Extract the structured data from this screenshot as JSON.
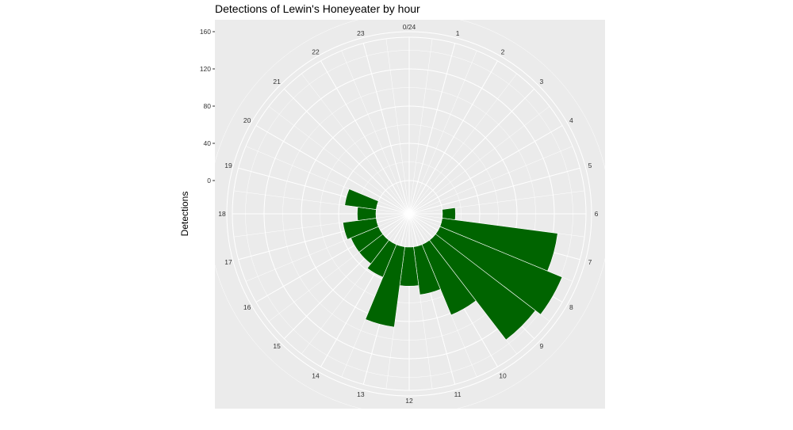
{
  "chart_data": {
    "type": "bar",
    "coordinate_system": "polar",
    "title": "Detections of Lewin's Honeyeater by hour",
    "xlabel": "",
    "ylabel": "Detections",
    "categories": [
      "0/24",
      "1",
      "2",
      "3",
      "4",
      "5",
      "6",
      "7",
      "8",
      "9",
      "10",
      "11",
      "12",
      "13",
      "14",
      "15",
      "16",
      "17",
      "18",
      "19",
      "20",
      "21",
      "22",
      "23"
    ],
    "values": [
      0,
      0,
      0,
      0,
      0,
      0,
      14,
      125,
      142,
      135,
      82,
      52,
      42,
      87,
      38,
      32,
      32,
      36,
      20,
      34,
      0,
      0,
      0,
      0
    ],
    "yticks": [
      0,
      40,
      80,
      120,
      160
    ],
    "ytick_labels": [
      "0",
      "40",
      "80",
      "120",
      "160"
    ],
    "ylim": [
      -40,
      180
    ],
    "grid": true,
    "bar_color": "#006400",
    "panel_color": "#ebebeb"
  }
}
